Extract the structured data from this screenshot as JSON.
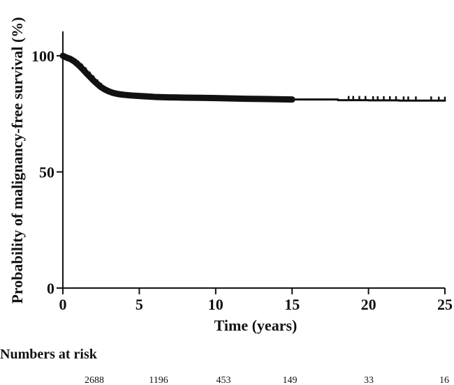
{
  "chart_data": {
    "type": "line",
    "title": "",
    "xlabel": "Time (years)",
    "ylabel": "Probability of malignancy-free survival (%)",
    "xlim": [
      0,
      25
    ],
    "ylim": [
      0,
      110
    ],
    "x_ticks": [
      0,
      5,
      10,
      15,
      20,
      25
    ],
    "y_ticks": [
      0,
      50,
      100
    ],
    "grid": false,
    "legend": "none",
    "line_color": "#111111",
    "series": [
      {
        "name": "",
        "x": [
          0,
          0.25,
          0.5,
          0.75,
          1.0,
          1.25,
          1.5,
          1.75,
          2.0,
          2.25,
          2.5,
          2.75,
          3.0,
          3.25,
          3.5,
          3.75,
          4.0,
          4.5,
          5.0,
          5.5,
          6.0,
          7.0,
          8.0,
          9.0,
          10.0,
          12.0,
          15.0,
          18.0,
          20.0,
          22.0,
          25.0
        ],
        "y": [
          100,
          99.2,
          98.6,
          97.6,
          96.2,
          94.6,
          92.8,
          91.1,
          89.4,
          87.9,
          86.5,
          85.5,
          84.7,
          84.1,
          83.7,
          83.4,
          83.2,
          82.9,
          82.7,
          82.5,
          82.3,
          82.1,
          82.0,
          81.9,
          81.8,
          81.5,
          81.2,
          80.9,
          80.8,
          80.7,
          80.6
        ]
      }
    ],
    "censor_marks": {
      "x": [
        18.7,
        19.0,
        19.4,
        19.8,
        20.3,
        20.6,
        21.0,
        21.4,
        21.8,
        22.3,
        22.6,
        23.1,
        24.1,
        24.6,
        25.0
      ],
      "y": [
        80.9,
        80.9,
        80.9,
        80.9,
        80.8,
        80.8,
        80.8,
        80.8,
        80.8,
        80.7,
        80.7,
        80.7,
        80.7,
        80.6,
        80.6
      ]
    },
    "numbers_at_risk": {
      "title": "Numbers at risk",
      "times": [
        0,
        5,
        10,
        15,
        20,
        25
      ],
      "values": [
        "2688",
        "1196",
        "453",
        "149",
        "33",
        "16"
      ]
    }
  }
}
